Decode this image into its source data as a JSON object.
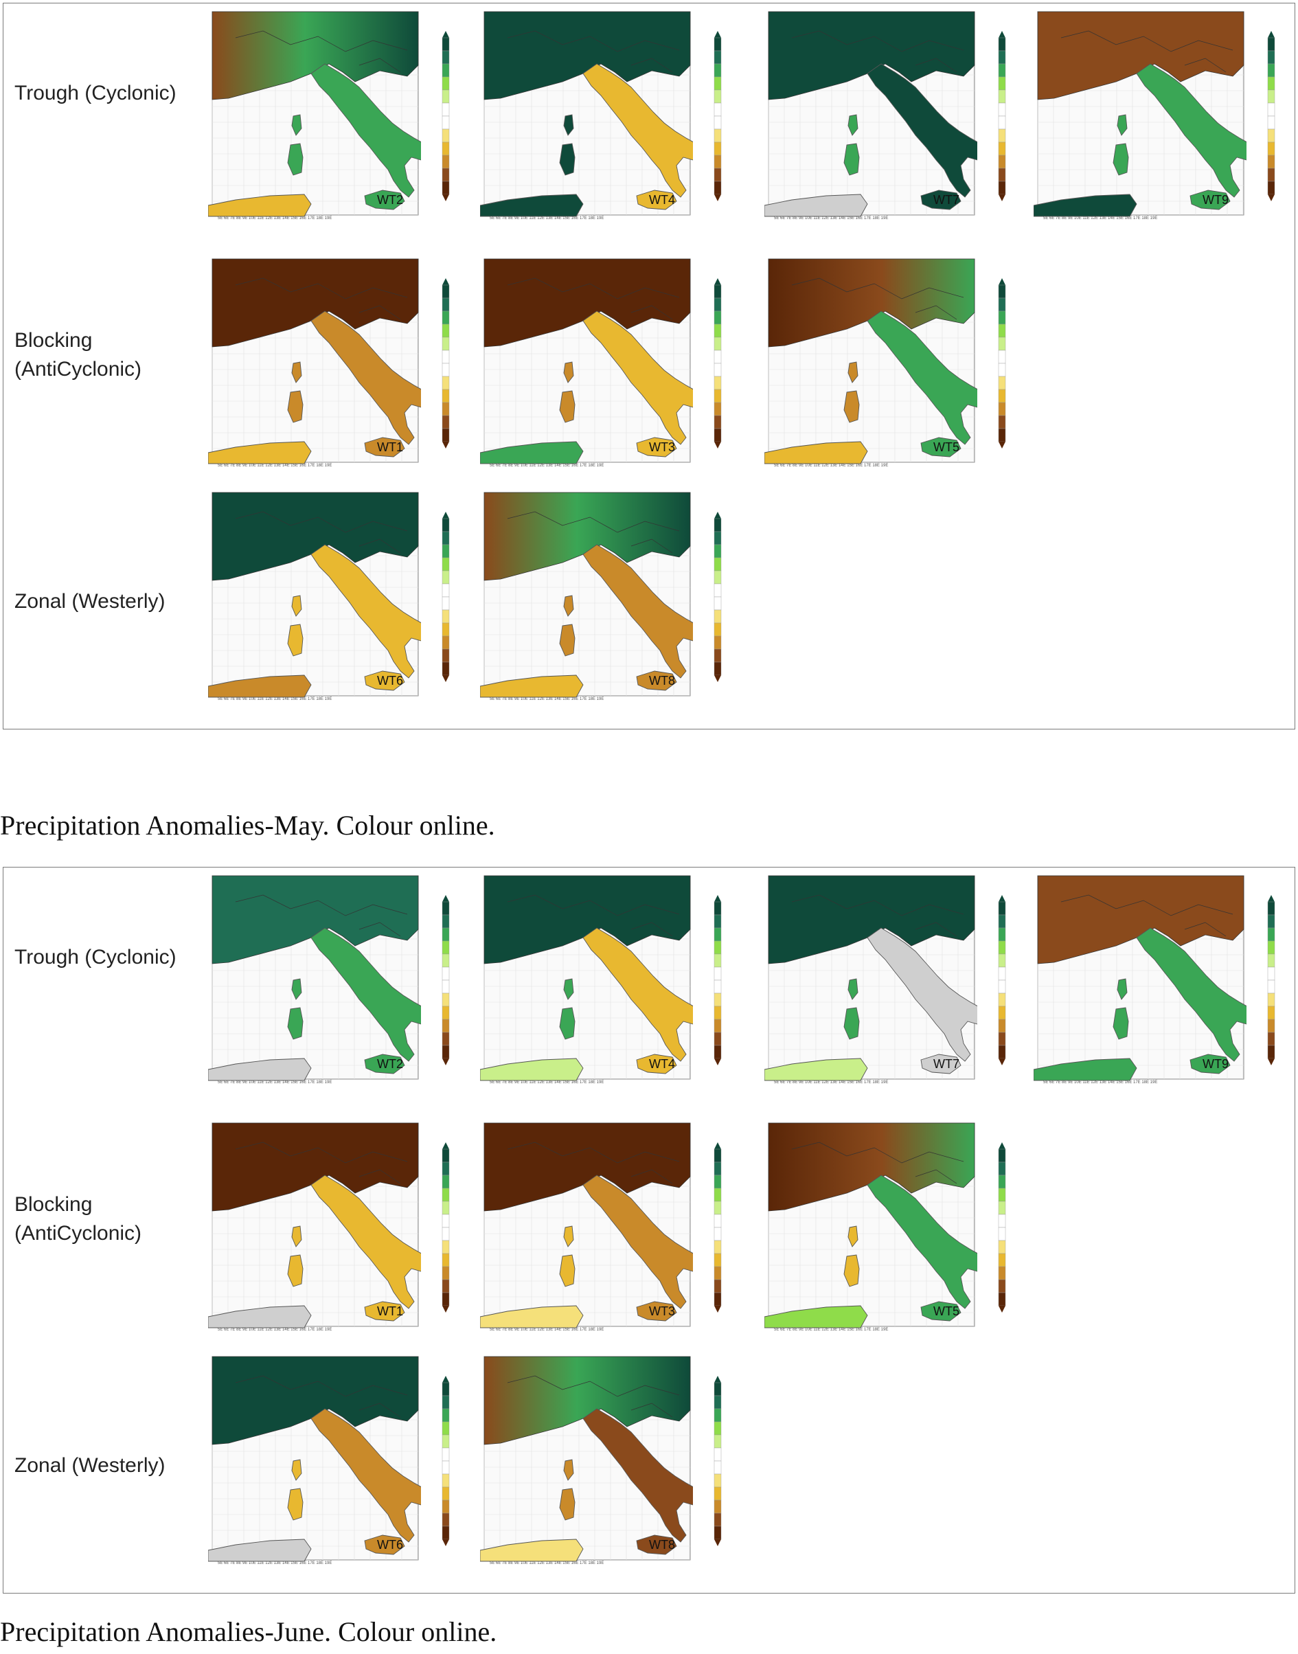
{
  "colors": {
    "dark_green": "#0f4a3a",
    "teal_green": "#1f6e54",
    "mid_green": "#3aa655",
    "light_green": "#8fdc4a",
    "pale_green": "#c9ef8a",
    "grey": "#cfcfcf",
    "pale_yellow": "#f5e07a",
    "yellow": "#e8b830",
    "orange": "#c98a2a",
    "brown": "#8a4a1c",
    "dark_brown": "#5a2608",
    "panel_border": "#7a7a7a"
  },
  "figures": [
    {
      "id": "may",
      "caption": "Precipitation Anomalies-May. Colour online.",
      "rows": [
        {
          "label": "Trough (Cyclonic)",
          "maps": [
            {
              "wt": "WT2",
              "north": "mix_green_brown",
              "land": "green",
              "islands": "green",
              "africa": "yellow",
              "colorbar": true
            },
            {
              "wt": "WT4",
              "north": "dark_green",
              "land": "yellow",
              "islands": "dark_green",
              "africa": "dark_green",
              "colorbar": true
            },
            {
              "wt": "WT7",
              "north": "dark_green",
              "land": "dark_green",
              "islands": "green",
              "africa": "grey",
              "colorbar": true
            },
            {
              "wt": "WT9",
              "north": "brown",
              "land": "green",
              "islands": "green",
              "africa": "dark_green",
              "colorbar": true
            }
          ]
        },
        {
          "label": "Blocking\n(AntiCyclonic)",
          "maps": [
            {
              "wt": "WT1",
              "north": "dark_brown",
              "land": "orange",
              "islands": "orange",
              "africa": "yellow",
              "colorbar": true
            },
            {
              "wt": "WT3",
              "north": "dark_brown",
              "land": "yellow",
              "islands": "orange",
              "africa": "green",
              "colorbar": true
            },
            {
              "wt": "WT5",
              "north": "mix_brown_green",
              "land": "green",
              "islands": "orange",
              "africa": "yellow",
              "colorbar": true
            }
          ]
        },
        {
          "label": "Zonal (Westerly)",
          "maps": [
            {
              "wt": "WT6",
              "north": "dark_green",
              "land": "yellow",
              "islands": "yellow",
              "africa": "orange",
              "colorbar": true
            },
            {
              "wt": "WT8",
              "north": "mix_green_brown",
              "land": "orange",
              "islands": "orange",
              "africa": "yellow",
              "colorbar": true
            }
          ]
        }
      ]
    },
    {
      "id": "june",
      "caption": "Precipitation Anomalies-June. Colour online.",
      "rows": [
        {
          "label": "Trough (Cyclonic)",
          "maps": [
            {
              "wt": "WT2",
              "north": "teal_green",
              "land": "green",
              "islands": "green",
              "africa": "grey",
              "colorbar": true
            },
            {
              "wt": "WT4",
              "north": "dark_green",
              "land": "yellow",
              "islands": "green",
              "africa": "pale_green",
              "colorbar": true
            },
            {
              "wt": "WT7",
              "north": "dark_green",
              "land": "grey",
              "islands": "green",
              "africa": "pale_green",
              "colorbar": true
            },
            {
              "wt": "WT9",
              "north": "brown",
              "land": "green",
              "islands": "green",
              "africa": "green",
              "colorbar": true
            }
          ]
        },
        {
          "label": "Blocking\n(AntiCyclonic)",
          "maps": [
            {
              "wt": "WT1",
              "north": "dark_brown",
              "land": "yellow",
              "islands": "yellow",
              "africa": "grey",
              "colorbar": true
            },
            {
              "wt": "WT3",
              "north": "dark_brown",
              "land": "orange",
              "islands": "yellow",
              "africa": "pale_yellow",
              "colorbar": true
            },
            {
              "wt": "WT5",
              "north": "mix_brown_green",
              "land": "green",
              "islands": "yellow",
              "africa": "light_green",
              "colorbar": true
            }
          ]
        },
        {
          "label": "Zonal (Westerly)",
          "maps": [
            {
              "wt": "WT6",
              "north": "dark_green",
              "land": "orange",
              "islands": "yellow",
              "africa": "grey",
              "colorbar": true
            },
            {
              "wt": "WT8",
              "north": "mix_green_brown",
              "land": "brown",
              "islands": "orange",
              "africa": "pale_yellow",
              "colorbar": true
            }
          ]
        }
      ]
    }
  ]
}
